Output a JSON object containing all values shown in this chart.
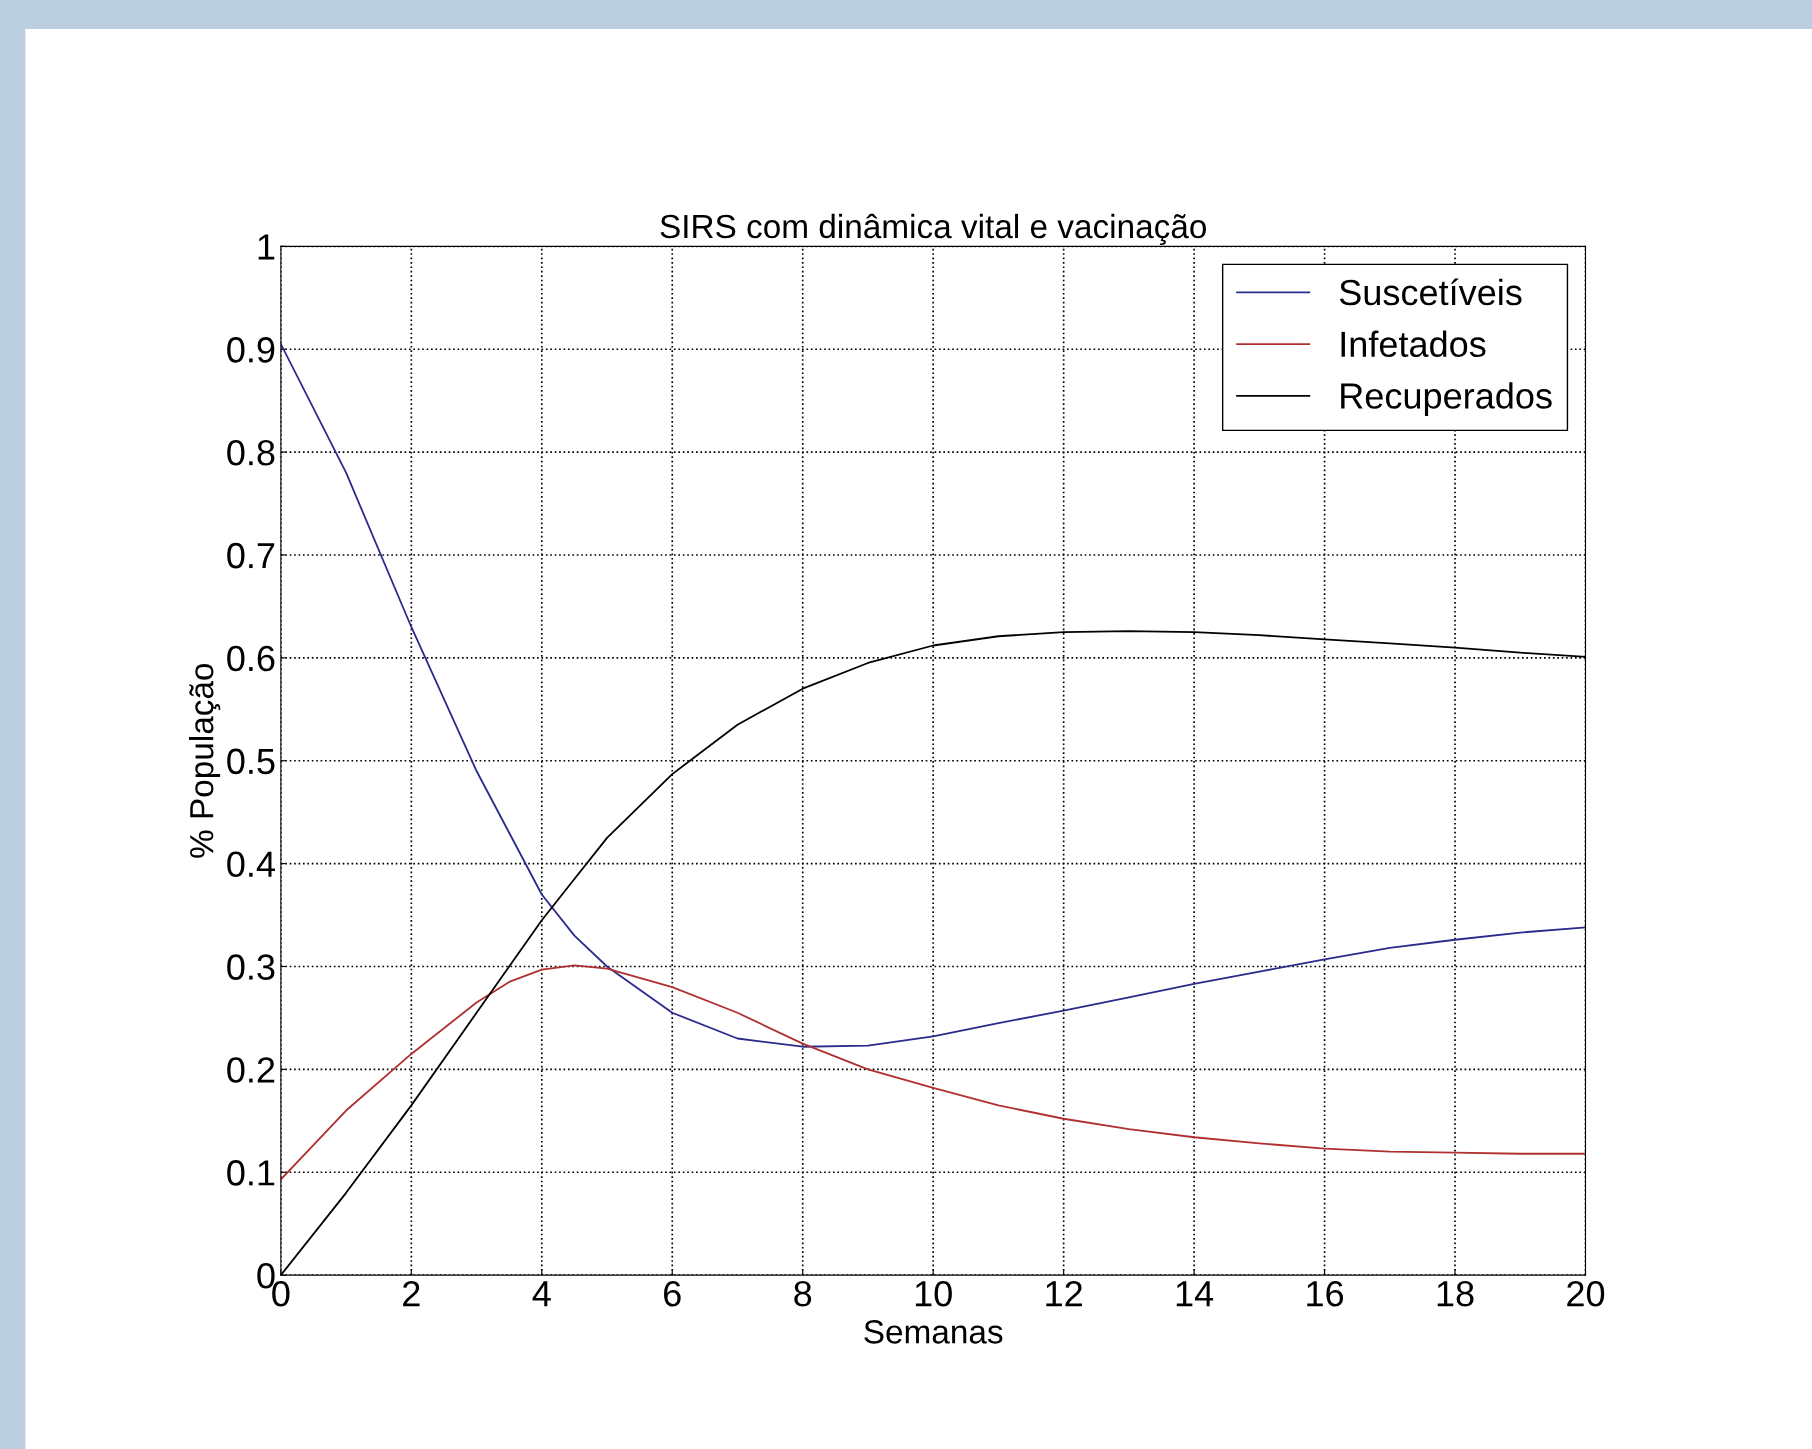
{
  "chart_data": {
    "type": "line",
    "title": "SIRS com dinâmica vital e vacinação",
    "xlabel": "Semanas",
    "ylabel": "% População",
    "x": [
      0,
      1,
      2,
      3,
      3.5,
      4,
      4.5,
      5,
      6,
      7,
      8,
      9,
      10,
      11,
      12,
      13,
      14,
      15,
      16,
      17,
      18,
      19,
      20
    ],
    "series": [
      {
        "name": "Suscetíveis",
        "color": "#2b2b8c",
        "values": [
          0.905,
          0.78,
          0.63,
          0.49,
          0.43,
          0.37,
          0.33,
          0.3,
          0.255,
          0.23,
          0.222,
          0.223,
          0.232,
          0.245,
          0.257,
          0.27,
          0.283,
          0.295,
          0.307,
          0.318,
          0.326,
          0.333,
          0.338
        ]
      },
      {
        "name": "Infetados",
        "color": "#b03030",
        "values": [
          0.093,
          0.16,
          0.215,
          0.265,
          0.285,
          0.297,
          0.301,
          0.298,
          0.28,
          0.255,
          0.225,
          0.2,
          0.182,
          0.165,
          0.152,
          0.142,
          0.134,
          0.128,
          0.123,
          0.12,
          0.119,
          0.118,
          0.118
        ]
      },
      {
        "name": "Recuperados",
        "color": "#000000",
        "values": [
          0.0,
          0.08,
          0.165,
          0.255,
          0.3,
          0.345,
          0.385,
          0.425,
          0.487,
          0.535,
          0.57,
          0.595,
          0.612,
          0.621,
          0.625,
          0.626,
          0.625,
          0.622,
          0.618,
          0.614,
          0.61,
          0.605,
          0.601
        ]
      }
    ],
    "xlim": [
      0,
      20
    ],
    "ylim": [
      0,
      1
    ],
    "xticks": [
      0,
      2,
      4,
      6,
      8,
      10,
      12,
      14,
      16,
      18,
      20
    ],
    "yticks": [
      0,
      0.1,
      0.2,
      0.3,
      0.4,
      0.5,
      0.6,
      0.7,
      0.8,
      0.9,
      1
    ],
    "grid": true,
    "legend": "top right",
    "line_style": "solid"
  }
}
